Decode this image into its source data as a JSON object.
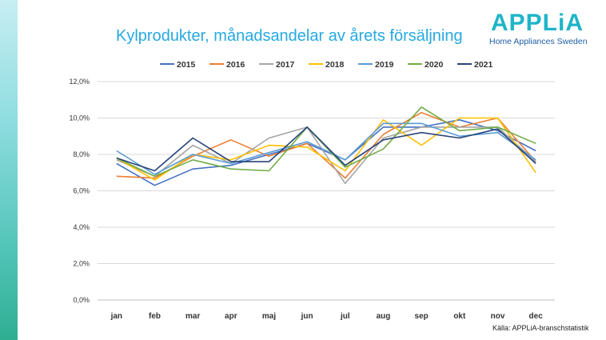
{
  "slide": {
    "title": "Kylprodukter, månadsandelar av årets försäljning",
    "source": "Källa: APPLiA-branschstatistik"
  },
  "logo": {
    "name": "APPLiA",
    "tagline": "Home Appliances Sweden"
  },
  "chart_data": {
    "type": "line",
    "title": "Kylprodukter, månadsandelar av årets försäljning",
    "categories": [
      "jan",
      "feb",
      "mar",
      "apr",
      "maj",
      "jun",
      "jul",
      "aug",
      "sep",
      "okt",
      "nov",
      "dec"
    ],
    "y_ticks": [
      "0,0%",
      "2,0%",
      "4,0%",
      "6,0%",
      "8,0%",
      "10,0%",
      "12,0%"
    ],
    "ylim": [
      0,
      12
    ],
    "grid": true,
    "legend_position": "top",
    "series": [
      {
        "name": "2015",
        "color": "#4472c4",
        "values": [
          7.5,
          6.3,
          7.2,
          7.4,
          8.0,
          8.6,
          7.7,
          9.5,
          9.5,
          9.9,
          9.3,
          8.2
        ]
      },
      {
        "name": "2016",
        "color": "#ed7d31",
        "values": [
          6.8,
          6.7,
          7.9,
          8.8,
          7.9,
          8.6,
          6.7,
          9.1,
          10.3,
          9.5,
          10.0,
          7.6
        ]
      },
      {
        "name": "2017",
        "color": "#a5a5a5",
        "values": [
          7.7,
          6.8,
          8.5,
          7.5,
          8.9,
          9.5,
          6.4,
          8.9,
          9.5,
          9.5,
          9.5,
          7.6
        ]
      },
      {
        "name": "2018",
        "color": "#ffc000",
        "values": [
          7.8,
          6.6,
          8.0,
          7.7,
          8.5,
          8.4,
          7.1,
          9.9,
          8.5,
          10.0,
          10.0,
          7.0
        ]
      },
      {
        "name": "2019",
        "color": "#5b9bd5",
        "values": [
          8.2,
          6.9,
          8.0,
          7.5,
          8.1,
          8.7,
          7.7,
          9.7,
          9.7,
          9.0,
          9.2,
          7.7
        ]
      },
      {
        "name": "2020",
        "color": "#70ad47",
        "values": [
          7.8,
          6.8,
          7.7,
          7.2,
          7.1,
          9.5,
          7.3,
          8.3,
          10.6,
          9.3,
          9.5,
          8.6
        ]
      },
      {
        "name": "2021",
        "color": "#264478",
        "values": [
          7.8,
          7.1,
          8.9,
          7.6,
          7.6,
          9.5,
          7.4,
          8.8,
          9.2,
          8.9,
          9.4,
          7.5
        ]
      }
    ]
  }
}
